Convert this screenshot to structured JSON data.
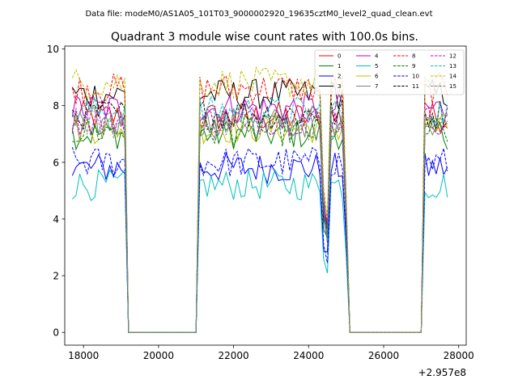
{
  "chart_data": {
    "type": "line",
    "suptitle": "Data file: modeM0/AS1A05_101T03_9000002920_19635cztM0_level2_quad_clean.evt",
    "title": "Quadrant 3 module wise count rates with 100.0s bins.",
    "xlabel": "",
    "ylabel": "",
    "x_offset_label": "+2.957e8",
    "xlim": [
      17500,
      28200
    ],
    "ylim": [
      -0.45,
      10.1
    ],
    "xticks": [
      18000,
      20000,
      22000,
      24000,
      26000,
      28000
    ],
    "xtick_labels": [
      "18000",
      "20000",
      "22000",
      "24000",
      "26000",
      "28000"
    ],
    "yticks": [
      0,
      2,
      4,
      6,
      8,
      10
    ],
    "ytick_labels": [
      "0",
      "2",
      "4",
      "6",
      "8",
      "10"
    ],
    "grid": false,
    "legend": {
      "position": "top-right",
      "columns": 4
    },
    "bin_width": 100,
    "segments": [
      {
        "start": 17700,
        "end": 19100
      },
      {
        "start": 21100,
        "end": 24300
      },
      {
        "start": 24600,
        "end": 24900
      },
      {
        "start": 27100,
        "end": 27700
      }
    ],
    "dips": [
      {
        "x": 24500,
        "depth": 0.55
      },
      {
        "x": 25000,
        "depth": 0.45
      }
    ],
    "zero_points": [
      19200,
      19300,
      20000,
      21000,
      25100,
      26000,
      27000
    ],
    "series": [
      {
        "name": "0",
        "color": "#ff0000",
        "dash": "solid",
        "level": 7.6
      },
      {
        "name": "1",
        "color": "#008000",
        "dash": "solid",
        "level": 7.0
      },
      {
        "name": "2",
        "color": "#0000ff",
        "dash": "solid",
        "level": 5.8
      },
      {
        "name": "3",
        "color": "#000000",
        "dash": "solid",
        "level": 8.4
      },
      {
        "name": "4",
        "color": "#bf00bf",
        "dash": "solid",
        "level": 7.9
      },
      {
        "name": "5",
        "color": "#00bfbf",
        "dash": "solid",
        "level": 5.2
      },
      {
        "name": "6",
        "color": "#bfbf00",
        "dash": "solid",
        "level": 7.2
      },
      {
        "name": "7",
        "color": "#808080",
        "dash": "solid",
        "level": 7.4
      },
      {
        "name": "8",
        "color": "#ff0000",
        "dash": "dashed",
        "level": 8.6
      },
      {
        "name": "9",
        "color": "#008000",
        "dash": "dashed",
        "level": 7.1
      },
      {
        "name": "10",
        "color": "#0000ff",
        "dash": "dashed",
        "level": 6.0
      },
      {
        "name": "11",
        "color": "#000000",
        "dash": "dashed",
        "level": 7.7
      },
      {
        "name": "12",
        "color": "#bf00bf",
        "dash": "dashed",
        "level": 7.5
      },
      {
        "name": "13",
        "color": "#00bfbf",
        "dash": "dashed",
        "level": 7.8
      },
      {
        "name": "14",
        "color": "#bfbf00",
        "dash": "dashed",
        "level": 8.8
      },
      {
        "name": "15",
        "color": "#808080",
        "dash": "dashed",
        "level": 7.3
      }
    ]
  }
}
